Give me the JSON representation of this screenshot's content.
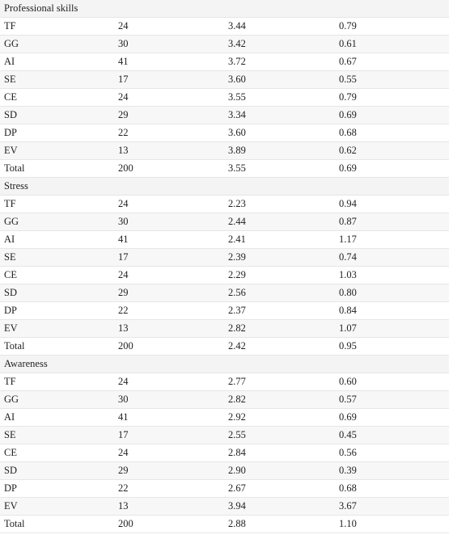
{
  "sections": [
    {
      "title": "Professional skills",
      "rows": [
        [
          "TF",
          "24",
          "3.44",
          "0.79"
        ],
        [
          "GG",
          "30",
          "3.42",
          "0.61"
        ],
        [
          "AI",
          "41",
          "3.72",
          "0.67"
        ],
        [
          "SE",
          "17",
          "3.60",
          "0.55"
        ],
        [
          "CE",
          "24",
          "3.55",
          "0.79"
        ],
        [
          "SD",
          "29",
          "3.34",
          "0.69"
        ],
        [
          "DP",
          "22",
          "3.60",
          "0.68"
        ],
        [
          "EV",
          "13",
          "3.89",
          "0.62"
        ],
        [
          "Total",
          "200",
          "3.55",
          "0.69"
        ]
      ]
    },
    {
      "title": "Stress",
      "rows": [
        [
          "TF",
          "24",
          "2.23",
          "0.94"
        ],
        [
          "GG",
          "30",
          "2.44",
          "0.87"
        ],
        [
          "AI",
          "41",
          "2.41",
          "1.17"
        ],
        [
          "SE",
          "17",
          "2.39",
          "0.74"
        ],
        [
          "CE",
          "24",
          "2.29",
          "1.03"
        ],
        [
          "SD",
          "29",
          "2.56",
          "0.80"
        ],
        [
          "DP",
          "22",
          "2.37",
          "0.84"
        ],
        [
          "EV",
          "13",
          "2.82",
          "1.07"
        ],
        [
          "Total",
          "200",
          "2.42",
          "0.95"
        ]
      ]
    },
    {
      "title": "Awareness",
      "rows": [
        [
          "TF",
          "24",
          "2.77",
          "0.60"
        ],
        [
          "GG",
          "30",
          "2.82",
          "0.57"
        ],
        [
          "AI",
          "41",
          "2.92",
          "0.69"
        ],
        [
          "SE",
          "17",
          "2.55",
          "0.45"
        ],
        [
          "CE",
          "24",
          "2.84",
          "0.56"
        ],
        [
          "SD",
          "29",
          "2.90",
          "0.39"
        ],
        [
          "DP",
          "22",
          "2.67",
          "0.68"
        ],
        [
          "EV",
          "13",
          "3.94",
          "3.67"
        ],
        [
          "Total",
          "200",
          "2.88",
          "1.10"
        ]
      ]
    }
  ]
}
